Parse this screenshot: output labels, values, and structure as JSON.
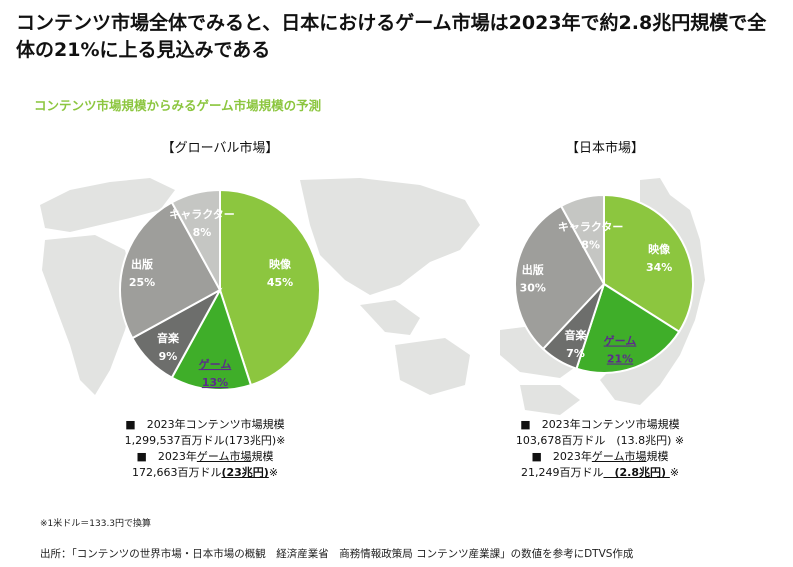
{
  "title_line1": "コンテンツ市場全体でみると、日本におけるゲーム市場は2023年で約2.8兆円規模で全",
  "title_line2": "体の21%に上る見込みである",
  "subtitle": "コンテンツ市場規模からみるゲーム市場規模の予測",
  "chart_data": [
    {
      "type": "pie",
      "title": "【グローバル市場】",
      "slices": [
        {
          "label": "映像",
          "value": 45,
          "value_label": "45%",
          "color": "#8cc63f"
        },
        {
          "label": "ゲーム",
          "value": 13,
          "value_label": "13%",
          "color": "#3fae29"
        },
        {
          "label": "音楽",
          "value": 9,
          "value_label": "9%",
          "color": "#6d6e6c"
        },
        {
          "label": "出版",
          "value": 25,
          "value_label": "25%",
          "color": "#9e9e9b"
        },
        {
          "label": "キャラクター",
          "value": 8,
          "value_label": "8%",
          "color": "#c5c6c3"
        }
      ]
    },
    {
      "type": "pie",
      "title": "【日本市場】",
      "slices": [
        {
          "label": "映像",
          "value": 34,
          "value_label": "34%",
          "color": "#8cc63f"
        },
        {
          "label": "ゲーム",
          "value": 21,
          "value_label": "21%",
          "color": "#3fae29"
        },
        {
          "label": "音楽",
          "value": 7,
          "value_label": "7%",
          "color": "#6d6e6c"
        },
        {
          "label": "出版",
          "value": 30,
          "value_label": "30%",
          "color": "#9e9e9b"
        },
        {
          "label": "キャラクター",
          "value": 8,
          "value_label": "8%",
          "color": "#c5c6c3"
        }
      ]
    }
  ],
  "global_stats": {
    "line1": "■　2023年コンテンツ市場規模",
    "line2": "1,299,537百万ドル(173兆円)※",
    "line3_prefix": "■　2023年",
    "line3_game": "ゲーム市場",
    "line3_suffix": "規模",
    "line4_prefix": "172,663百万ドル",
    "line4_value": "(23兆円)",
    "line4_suffix": "※"
  },
  "japan_stats": {
    "line1": "■　2023年コンテンツ市場規模",
    "line2": "103,678百万ドル　(13.8兆円) ※",
    "line3_prefix": "■　2023年",
    "line3_game": "ゲーム市場",
    "line3_suffix": "規模",
    "line4_prefix": "21,249百万ドル",
    "line4_value": "　(2.8兆円) ",
    "line4_suffix": "※"
  },
  "note": "※1米ドル＝133.3円で換算",
  "source": "出所：「コンテンツの世界市場・日本市場の概観　経済産業省　商務情報政策局 コンテンツ産業課」の数値を参考にDTVS作成",
  "colors": {
    "accent": "#8cc63f",
    "game": "#3fae29",
    "map": "#e2e3e1"
  }
}
